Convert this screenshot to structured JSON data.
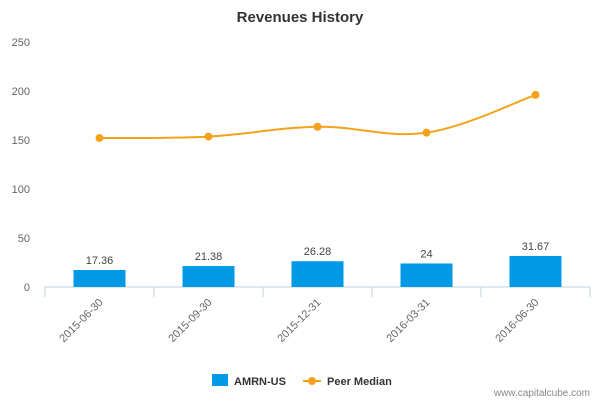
{
  "chart_data": {
    "type": "bar",
    "title": "Revenues History",
    "categories": [
      "2015-06-30",
      "2015-09-30",
      "2015-12-31",
      "2016-03-31",
      "2016-06-30"
    ],
    "series": [
      {
        "name": "AMRN-US",
        "type": "bar",
        "color": "#0099e6",
        "values": [
          17.36,
          21.38,
          26.28,
          24,
          31.67
        ],
        "labels": [
          "17.36",
          "21.38",
          "26.28",
          "24",
          "31.67"
        ]
      },
      {
        "name": "Peer Median",
        "type": "line",
        "color": "#f5a21b",
        "values": [
          152,
          153.5,
          163.5,
          157.5,
          196
        ]
      }
    ],
    "ylim": [
      0,
      250
    ],
    "yticks": [
      0,
      50,
      100,
      150,
      200,
      250
    ],
    "grid": false,
    "legend_position": "bottom"
  },
  "footer": {
    "credit": "www.capitalcube.com"
  }
}
